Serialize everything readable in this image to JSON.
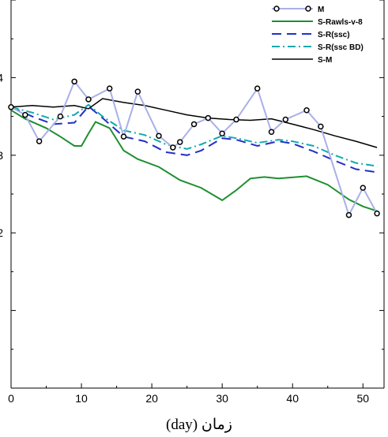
{
  "chart_data": {
    "type": "line",
    "xlabel": "(day) زمان",
    "xlim": [
      0,
      53
    ],
    "ylim": [
      0,
      5
    ],
    "x_ticks": [
      "0",
      "10",
      "20",
      "30",
      "40",
      "50"
    ],
    "y_ticks": [
      "2",
      "3",
      "4"
    ],
    "grid": false,
    "legend_position": "top-right",
    "series": [
      {
        "name": "M",
        "color": "#a9b0e8",
        "marker": "circle",
        "x": [
          0,
          2,
          4,
          7,
          9,
          11,
          14,
          16,
          18,
          21,
          23,
          24,
          26,
          28,
          30,
          32,
          35,
          37,
          39,
          42,
          44,
          48,
          50,
          52
        ],
        "y": [
          3.62,
          3.52,
          3.18,
          3.5,
          3.95,
          3.72,
          3.86,
          3.24,
          3.82,
          3.25,
          3.1,
          3.17,
          3.4,
          3.48,
          3.28,
          3.46,
          3.86,
          3.3,
          3.46,
          3.58,
          3.37,
          2.23,
          2.58,
          2.25
        ]
      },
      {
        "name": "S-Rawls-v-8",
        "color": "#1f8f2f",
        "dash": "solid",
        "x": [
          0,
          2,
          5,
          7,
          9,
          10,
          11,
          12,
          14,
          16,
          18,
          21,
          24,
          27,
          30,
          32,
          34,
          36,
          38,
          42,
          45,
          48,
          50,
          52
        ],
        "y": [
          3.58,
          3.47,
          3.35,
          3.24,
          3.12,
          3.12,
          3.28,
          3.43,
          3.35,
          3.06,
          2.95,
          2.85,
          2.68,
          2.58,
          2.42,
          2.55,
          2.7,
          2.72,
          2.7,
          2.73,
          2.62,
          2.43,
          2.34,
          2.28
        ]
      },
      {
        "name": "S-R(ssc)",
        "color": "#2430c8",
        "dash": "12,7",
        "x": [
          0,
          3,
          6,
          9,
          11,
          13,
          16,
          19,
          22,
          25,
          27,
          30,
          32,
          35,
          38,
          40,
          43,
          46,
          49,
          52
        ],
        "y": [
          3.62,
          3.5,
          3.4,
          3.42,
          3.63,
          3.48,
          3.24,
          3.18,
          3.04,
          3.0,
          3.06,
          3.22,
          3.2,
          3.12,
          3.18,
          3.15,
          3.05,
          2.93,
          2.82,
          2.78
        ]
      },
      {
        "name": "S-R(ssc BD)",
        "color": "#10aab0",
        "dash": "10,4,2,4",
        "x": [
          0,
          3,
          6,
          9,
          11,
          13,
          16,
          19,
          22,
          25,
          27,
          30,
          32,
          35,
          38,
          40,
          43,
          46,
          49,
          52
        ],
        "y": [
          3.62,
          3.55,
          3.46,
          3.52,
          3.65,
          3.5,
          3.32,
          3.26,
          3.14,
          3.08,
          3.14,
          3.25,
          3.22,
          3.16,
          3.2,
          3.18,
          3.12,
          3.0,
          2.9,
          2.86
        ]
      },
      {
        "name": "S-M",
        "color": "#000000",
        "dash": "solid",
        "x": [
          0,
          3,
          6,
          9,
          11,
          13,
          16,
          19,
          22,
          25,
          28,
          31,
          34,
          37,
          40,
          43,
          46,
          49,
          52
        ],
        "y": [
          3.62,
          3.64,
          3.62,
          3.64,
          3.6,
          3.73,
          3.68,
          3.64,
          3.58,
          3.52,
          3.48,
          3.46,
          3.45,
          3.47,
          3.4,
          3.33,
          3.25,
          3.18,
          3.1
        ]
      }
    ]
  }
}
